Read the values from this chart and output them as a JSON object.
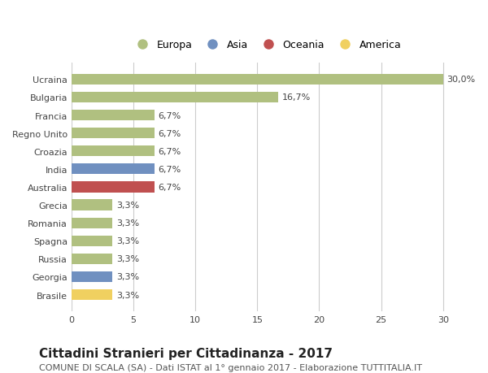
{
  "categories": [
    "Brasile",
    "Georgia",
    "Russia",
    "Spagna",
    "Romania",
    "Grecia",
    "Australia",
    "India",
    "Croazia",
    "Regno Unito",
    "Francia",
    "Bulgaria",
    "Ucraina"
  ],
  "values": [
    3.3,
    3.3,
    3.3,
    3.3,
    3.3,
    3.3,
    6.7,
    6.7,
    6.7,
    6.7,
    6.7,
    16.7,
    30.0
  ],
  "labels": [
    "3,3%",
    "3,3%",
    "3,3%",
    "3,3%",
    "3,3%",
    "3,3%",
    "6,7%",
    "6,7%",
    "6,7%",
    "6,7%",
    "6,7%",
    "16,7%",
    "30,0%"
  ],
  "colors": [
    "#f0d060",
    "#7090c0",
    "#b0c080",
    "#b0c080",
    "#b0c080",
    "#b0c080",
    "#c05050",
    "#7090c0",
    "#b0c080",
    "#b0c080",
    "#b0c080",
    "#b0c080",
    "#b0c080"
  ],
  "legend_labels": [
    "Europa",
    "Asia",
    "Oceania",
    "America"
  ],
  "legend_colors": [
    "#b0c080",
    "#7090c0",
    "#c05050",
    "#f0d060"
  ],
  "xlim": [
    0,
    31.5
  ],
  "xticks": [
    0,
    5,
    10,
    15,
    20,
    25,
    30
  ],
  "title": "Cittadini Stranieri per Cittadinanza - 2017",
  "subtitle": "COMUNE DI SCALA (SA) - Dati ISTAT al 1° gennaio 2017 - Elaborazione TUTTITALIA.IT",
  "background_color": "#ffffff",
  "grid_color": "#cccccc",
  "bar_height": 0.6,
  "title_fontsize": 11,
  "subtitle_fontsize": 8,
  "label_fontsize": 8,
  "tick_fontsize": 8,
  "legend_fontsize": 9
}
